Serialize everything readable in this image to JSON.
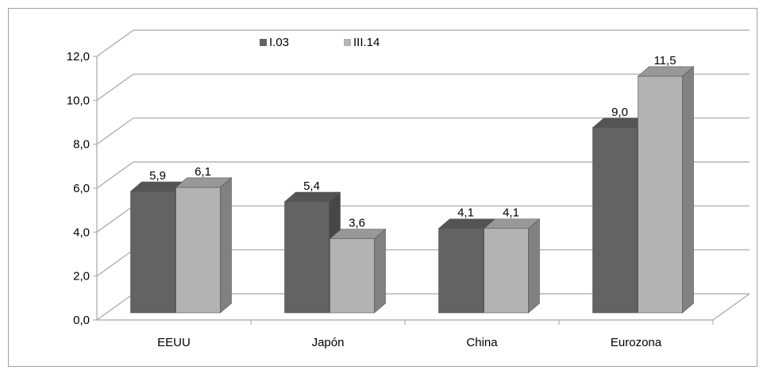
{
  "chart_data": {
    "type": "bar",
    "categories": [
      "EEUU",
      "Japón",
      "China",
      "Eurozona"
    ],
    "series": [
      {
        "name": "I.03",
        "values": [
          5.9,
          5.4,
          4.1,
          9.0
        ],
        "labels": [
          "5,9",
          "5,4",
          "4,1",
          "9,0"
        ],
        "color": "#636363"
      },
      {
        "name": "III.14",
        "values": [
          6.1,
          3.6,
          4.1,
          11.5
        ],
        "labels": [
          "6,1",
          "3,6",
          "4,1",
          "11,5"
        ],
        "color": "#b3b3b3"
      }
    ],
    "y_ticks": [
      "0,0",
      "2,0",
      "4,0",
      "6,0",
      "8,0",
      "10,0",
      "12,0"
    ],
    "ylim": [
      0,
      12
    ],
    "grid": true,
    "legend_position": "top-center",
    "style": "3d-clustered-column"
  }
}
